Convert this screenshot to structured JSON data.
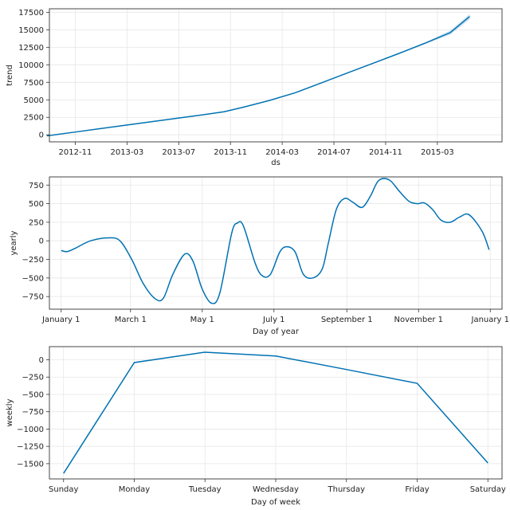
{
  "colors": {
    "line": "#0072B2",
    "band": "#0072B2"
  },
  "chart_data": [
    {
      "type": "line",
      "name": "trend",
      "ylabel": "trend",
      "xlabel": "ds",
      "xlim": [
        0,
        35
      ],
      "ylim": [
        -1000,
        18000
      ],
      "xticks": [
        {
          "v": 2,
          "label": "2012-11"
        },
        {
          "v": 6,
          "label": "2013-03"
        },
        {
          "v": 10,
          "label": "2013-07"
        },
        {
          "v": 14,
          "label": "2013-11"
        },
        {
          "v": 18,
          "label": "2014-03"
        },
        {
          "v": 22,
          "label": "2014-07"
        },
        {
          "v": 26,
          "label": "2014-11"
        },
        {
          "v": 30,
          "label": "2015-03"
        }
      ],
      "yticks": [
        {
          "v": 0,
          "label": "0"
        },
        {
          "v": 2500,
          "label": "2500"
        },
        {
          "v": 5000,
          "label": "5000"
        },
        {
          "v": 7500,
          "label": "7500"
        },
        {
          "v": 10000,
          "label": "10000"
        },
        {
          "v": 12500,
          "label": "12500"
        },
        {
          "v": 15000,
          "label": "15000"
        },
        {
          "v": 17500,
          "label": "17500"
        }
      ],
      "x": [
        -0.2,
        2,
        4,
        6,
        8,
        10,
        12,
        13.5,
        15,
        17,
        19,
        21,
        23,
        25,
        27,
        29,
        31,
        32.5
      ],
      "y": [
        -150,
        400,
        900,
        1400,
        1900,
        2400,
        2900,
        3300,
        3950,
        4900,
        6000,
        7400,
        8800,
        10200,
        11600,
        13050,
        14600,
        16900
      ],
      "band_lower": [
        -150,
        400,
        900,
        1400,
        1900,
        2400,
        2900,
        3300,
        3950,
        4900,
        6000,
        7400,
        8800,
        10200,
        11550,
        12950,
        14300,
        16500
      ],
      "band_upper": [
        -150,
        400,
        900,
        1400,
        1900,
        2400,
        2900,
        3300,
        3950,
        4900,
        6000,
        7400,
        8800,
        10200,
        11650,
        13150,
        14900,
        17250
      ]
    },
    {
      "type": "line",
      "name": "yearly",
      "ylabel": "yearly",
      "xlabel": "Day of year",
      "xlim": [
        -10,
        375
      ],
      "ylim": [
        -920,
        860
      ],
      "xticks": [
        {
          "v": 0,
          "label": "January 1"
        },
        {
          "v": 59,
          "label": "March 1"
        },
        {
          "v": 120,
          "label": "May 1"
        },
        {
          "v": 181,
          "label": "July 1"
        },
        {
          "v": 243,
          "label": "September 1"
        },
        {
          "v": 304,
          "label": "November 1"
        },
        {
          "v": 365,
          "label": "January 1"
        }
      ],
      "yticks": [
        {
          "v": -750,
          "label": "−750"
        },
        {
          "v": -500,
          "label": "−500"
        },
        {
          "v": -250,
          "label": "−250"
        },
        {
          "v": 0,
          "label": "0"
        },
        {
          "v": 250,
          "label": "250"
        },
        {
          "v": 500,
          "label": "500"
        },
        {
          "v": 750,
          "label": "750"
        }
      ],
      "x": [
        0,
        5,
        12,
        25,
        40,
        50,
        60,
        70,
        80,
        87,
        95,
        105,
        112,
        120,
        128,
        135,
        145,
        150,
        155,
        165,
        171,
        178,
        186,
        192,
        199,
        206,
        214,
        222,
        227,
        234,
        241,
        248,
        256,
        263,
        270,
        279,
        288,
        296,
        303,
        309,
        316,
        323,
        331,
        339,
        347,
        358,
        364
      ],
      "y": [
        -130,
        -145,
        -100,
        0,
        40,
        0,
        -250,
        -580,
        -780,
        -770,
        -450,
        -180,
        -270,
        -650,
        -840,
        -700,
        100,
        240,
        200,
        -300,
        -470,
        -450,
        -150,
        -80,
        -150,
        -450,
        -500,
        -380,
        -50,
        420,
        570,
        520,
        450,
        600,
        810,
        820,
        660,
        530,
        500,
        510,
        420,
        280,
        250,
        320,
        350,
        130,
        -120
      ]
    },
    {
      "type": "line",
      "name": "weekly",
      "ylabel": "weekly",
      "xlabel": "Day of week",
      "xlim": [
        -0.2,
        6.2
      ],
      "ylim": [
        -1720,
        190
      ],
      "categories": [
        "Sunday",
        "Monday",
        "Tuesday",
        "Wednesday",
        "Thursday",
        "Friday",
        "Saturday"
      ],
      "xticks": [
        {
          "v": 0,
          "label": "Sunday"
        },
        {
          "v": 1,
          "label": "Monday"
        },
        {
          "v": 2,
          "label": "Tuesday"
        },
        {
          "v": 3,
          "label": "Wednesday"
        },
        {
          "v": 4,
          "label": "Thursday"
        },
        {
          "v": 5,
          "label": "Friday"
        },
        {
          "v": 6,
          "label": "Saturday"
        }
      ],
      "yticks": [
        {
          "v": -1500,
          "label": "−1500"
        },
        {
          "v": -1250,
          "label": "−1250"
        },
        {
          "v": -1000,
          "label": "−1000"
        },
        {
          "v": -750,
          "label": "−750"
        },
        {
          "v": -500,
          "label": "−500"
        },
        {
          "v": -250,
          "label": "−250"
        },
        {
          "v": 0,
          "label": "0"
        }
      ],
      "x": [
        0,
        1,
        2,
        3,
        4,
        5,
        6
      ],
      "y": [
        -1640,
        -40,
        110,
        55,
        -140,
        -340,
        -1490
      ]
    }
  ]
}
